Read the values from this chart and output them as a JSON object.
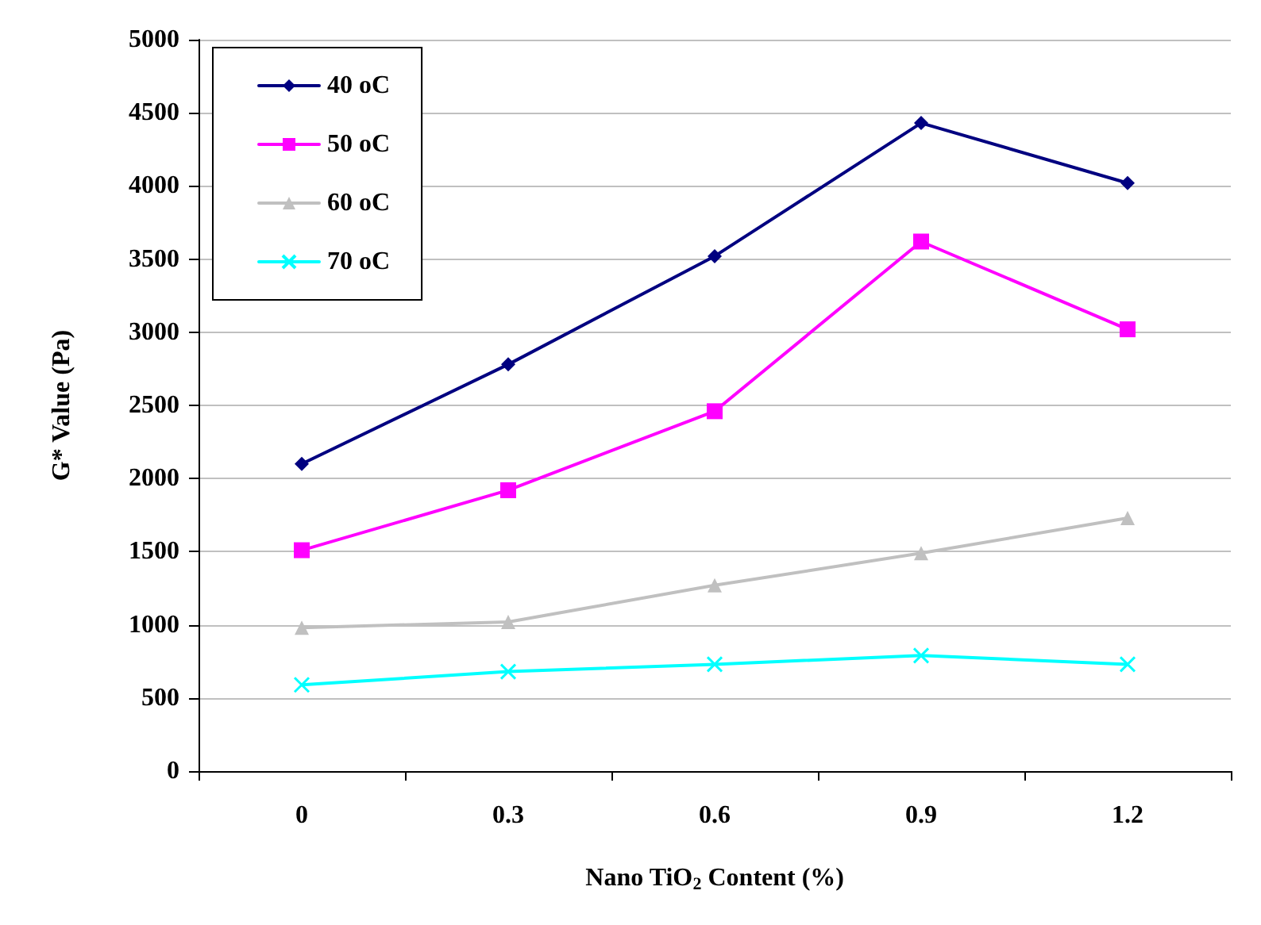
{
  "chart_data": {
    "type": "line",
    "xlabel": "Nano TiO$_{2}$ Content (%)",
    "ylabel": "G* Value (Pa)",
    "categories": [
      "0",
      "0.3",
      "0.6",
      "0.9",
      "1.2"
    ],
    "series": [
      {
        "name": "40 oC",
        "color": "#000080",
        "marker": "diamond",
        "values": [
          2100,
          2780,
          3520,
          4430,
          4020
        ]
      },
      {
        "name": "50 oC",
        "color": "#ff00ff",
        "marker": "square",
        "values": [
          1510,
          1920,
          2460,
          3620,
          3020
        ]
      },
      {
        "name": "60 oC",
        "color": "#c0c0c0",
        "marker": "triangle",
        "values": [
          980,
          1020,
          1270,
          1490,
          1730
        ]
      },
      {
        "name": "70 oC",
        "color": "#00ffff",
        "marker": "cross",
        "values": [
          590,
          680,
          730,
          790,
          730
        ]
      }
    ],
    "ylim": [
      0,
      5000
    ],
    "yticks": [
      0,
      500,
      1000,
      1500,
      2000,
      2500,
      3000,
      3500,
      4000,
      4500,
      5000
    ],
    "grid": "y",
    "legend": "top left",
    "line_style": "solid"
  }
}
